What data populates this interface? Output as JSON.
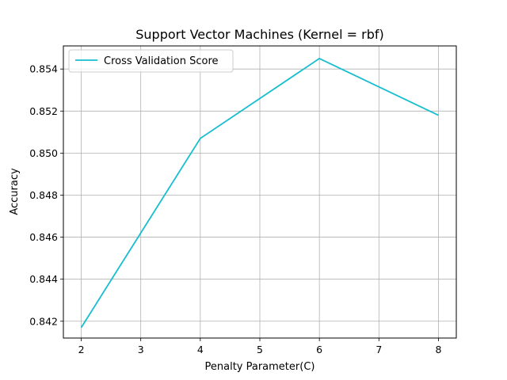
{
  "chart_data": {
    "type": "line",
    "title": "Support Vector Machines (Kernel = rbf)",
    "xlabel": "Penalty Parameter(C)",
    "ylabel": "Accuracy",
    "xlim": [
      1.7,
      8.3
    ],
    "ylim": [
      0.8412,
      0.8551
    ],
    "xticks": [
      2,
      3,
      4,
      5,
      6,
      7,
      8
    ],
    "xtick_labels": [
      "2",
      "3",
      "4",
      "5",
      "6",
      "7",
      "8"
    ],
    "yticks": [
      0.842,
      0.844,
      0.846,
      0.848,
      0.85,
      0.852,
      0.854
    ],
    "ytick_labels": [
      "0.842",
      "0.844",
      "0.846",
      "0.848",
      "0.850",
      "0.852",
      "0.854"
    ],
    "grid": true,
    "legend_position": "top-left",
    "series": [
      {
        "name": "Cross Validation Score",
        "color": "#17becf",
        "x": [
          2,
          4,
          6,
          8
        ],
        "y": [
          0.8417,
          0.8507,
          0.8545,
          0.8518
        ]
      }
    ]
  },
  "colors": {
    "grid": "#b0b0b0",
    "axis": "#000000",
    "background": "#ffffff",
    "legend_border": "#cccccc"
  }
}
